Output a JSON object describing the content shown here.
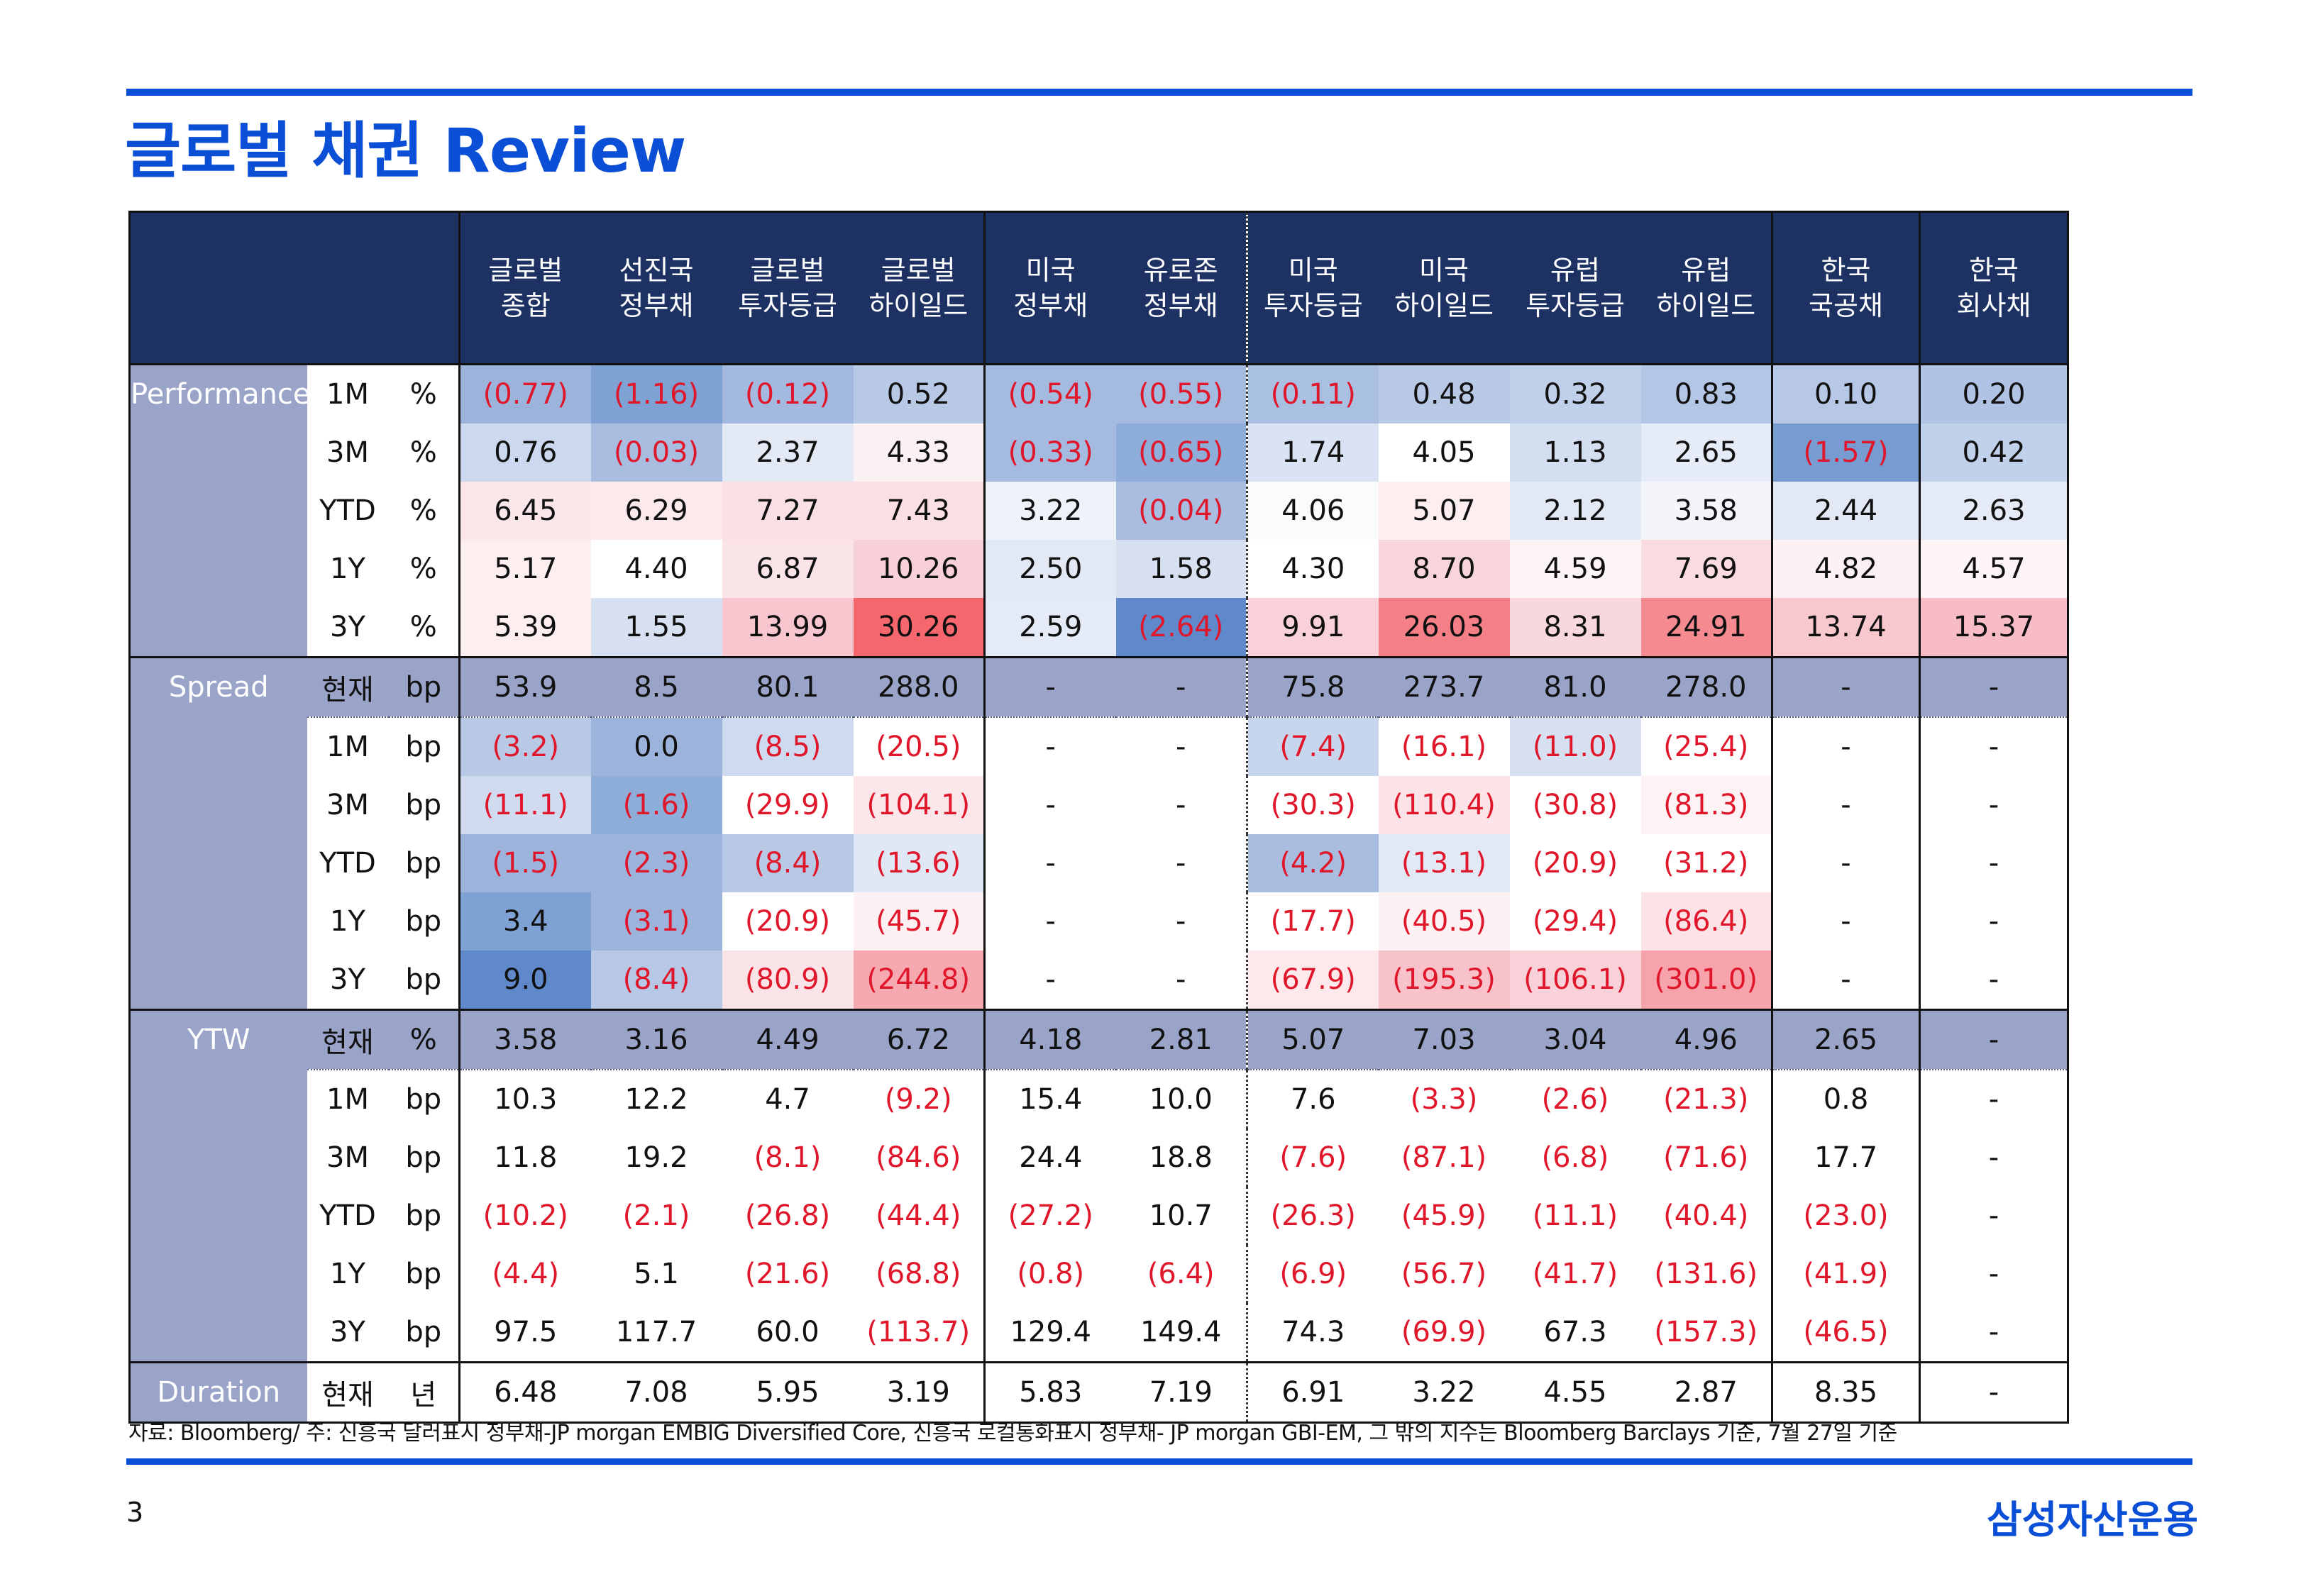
{
  "title": "글로벌 채권 Review",
  "columns": [
    [
      "글로벌",
      "종합"
    ],
    [
      "선진국",
      "정부채"
    ],
    [
      "글로벌",
      "투자등급"
    ],
    [
      "글로벌",
      "하이일드"
    ],
    [
      "미국",
      "정부채"
    ],
    [
      "유로존",
      "정부채"
    ],
    [
      "미국",
      "투자등급"
    ],
    [
      "미국",
      "하이일드"
    ],
    [
      "유럽",
      "투자등급"
    ],
    [
      "유럽",
      "하이일드"
    ],
    [
      "한국",
      "국공채"
    ],
    [
      "한국",
      "회사채"
    ]
  ],
  "colors": {
    "accent": "#0b4fd6",
    "header_bg": "#1d3263",
    "section_bg": "#9aa3c8",
    "negative": "#e0162b"
  },
  "sections": [
    {
      "name": "Performance",
      "rows": [
        {
          "period": "1M",
          "unit": "%",
          "values": [
            "(0.77)",
            "(1.16)",
            "(0.12)",
            "0.52",
            "(0.54)",
            "(0.55)",
            "(0.11)",
            "0.48",
            "0.32",
            "0.83",
            "0.10",
            "0.20"
          ],
          "shades": [
            "#9cb4dc",
            "#7fa2d4",
            "#a3b9df",
            "#b8c9e6",
            "#a5badf",
            "#a5badf",
            "#aac0e2",
            "#b8c9e6",
            "#c0d0ea",
            "#b4c6e5",
            "#b6c8e6",
            "#b0c3e4"
          ]
        },
        {
          "period": "3M",
          "unit": "%",
          "values": [
            "0.76",
            "(0.03)",
            "2.37",
            "4.33",
            "(0.33)",
            "(0.65)",
            "1.74",
            "4.05",
            "1.13",
            "2.65",
            "(1.57)",
            "0.42"
          ],
          "shades": [
            "#ccd8ee",
            "#a8bde0",
            "#e2e9f5",
            "#fbf1f3",
            "#a5badf",
            "#8fadd9",
            "#dae3f3",
            "#ffffff",
            "#d3def0",
            "#e6ecf7",
            "#779cd2",
            "#c2d1eb"
          ]
        },
        {
          "period": "YTD",
          "unit": "%",
          "values": [
            "6.45",
            "6.29",
            "7.27",
            "7.43",
            "3.22",
            "(0.04)",
            "4.06",
            "5.07",
            "2.12",
            "3.58",
            "2.44",
            "2.63"
          ],
          "shades": [
            "#fbe6ea",
            "#fce9ec",
            "#fae0e4",
            "#fadfe3",
            "#eef2f9",
            "#a8bde0",
            "#f9fbfd",
            "#fdeef0",
            "#e2e9f5",
            "#f3f5fb",
            "#e2e9f5",
            "#e5ebf6"
          ]
        },
        {
          "period": "1Y",
          "unit": "%",
          "values": [
            "5.17",
            "4.40",
            "6.87",
            "10.26",
            "2.50",
            "1.58",
            "4.30",
            "8.70",
            "4.59",
            "7.69",
            "4.82",
            "4.57"
          ],
          "shades": [
            "#fdeef0",
            "#ffffff",
            "#fbe4e8",
            "#f8d0d7",
            "#e2e9f5",
            "#d6e0f1",
            "#ffffff",
            "#f7d5db",
            "#fdf4f5",
            "#f9dbe0",
            "#fdf1f3",
            "#fdf4f5"
          ]
        },
        {
          "period": "3Y",
          "unit": "%",
          "values": [
            "5.39",
            "1.55",
            "13.99",
            "30.26",
            "2.59",
            "(2.64)",
            "9.91",
            "26.03",
            "8.31",
            "24.91",
            "13.74",
            "15.37"
          ],
          "shades": [
            "#fdeef0",
            "#d6e0f1",
            "#f8c6ce",
            "#f6676d",
            "#e4eaf6",
            "#5f89cb",
            "#f8d2d8",
            "#f47f86",
            "#f9d8dd",
            "#f58a91",
            "#f8c8cf",
            "#f7bcc5"
          ]
        }
      ]
    },
    {
      "name": "Spread",
      "rows": [
        {
          "period": "현재",
          "unit": "bp",
          "values": [
            "53.9",
            "8.5",
            "80.1",
            "288.0",
            "-",
            "-",
            "75.8",
            "273.7",
            "81.0",
            "278.0",
            "-",
            "-"
          ]
        },
        {
          "period": "1M",
          "unit": "bp",
          "values": [
            "(3.2)",
            "0.0",
            "(8.5)",
            "(20.5)",
            "-",
            "-",
            "(7.4)",
            "(16.1)",
            "(11.0)",
            "(25.4)",
            "-",
            "-"
          ],
          "shades": [
            "#b8c9e6",
            "#9cb4dc",
            "#cedaef",
            "#ffffff",
            "#ffffff",
            "#ffffff",
            "#c8d6ed",
            "#ffffff",
            "#d6e0f1",
            "#ffffff",
            "#ffffff",
            "#ffffff"
          ]
        },
        {
          "period": "3M",
          "unit": "bp",
          "values": [
            "(11.1)",
            "(1.6)",
            "(29.9)",
            "(104.1)",
            "-",
            "-",
            "(30.3)",
            "(110.4)",
            "(30.8)",
            "(81.3)",
            "-",
            "-"
          ],
          "shades": [
            "#d0dbef",
            "#8eaed9",
            "#ffffff",
            "#fbe7ea",
            "#ffffff",
            "#ffffff",
            "#ffffff",
            "#fbe3e7",
            "#ffffff",
            "#fdf2f4",
            "#ffffff",
            "#ffffff"
          ]
        },
        {
          "period": "YTD",
          "unit": "bp",
          "values": [
            "(1.5)",
            "(2.3)",
            "(8.4)",
            "(13.6)",
            "-",
            "-",
            "(4.2)",
            "(13.1)",
            "(20.9)",
            "(31.2)",
            "-",
            "-"
          ],
          "shades": [
            "#9cb4dc",
            "#9cb4dc",
            "#b8c9e6",
            "#e0e8f5",
            "#ffffff",
            "#ffffff",
            "#a8bde0",
            "#e2e9f5",
            "#ffffff",
            "#ffffff",
            "#ffffff",
            "#ffffff"
          ]
        },
        {
          "period": "1Y",
          "unit": "bp",
          "values": [
            "3.4",
            "(3.1)",
            "(20.9)",
            "(45.7)",
            "-",
            "-",
            "(17.7)",
            "(40.5)",
            "(29.4)",
            "(86.4)",
            "-",
            "-"
          ],
          "shades": [
            "#7fa2d4",
            "#9cb4dc",
            "#ffffff",
            "#fdf0f2",
            "#ffffff",
            "#ffffff",
            "#ffffff",
            "#fdf1f3",
            "#ffffff",
            "#fbe3e7",
            "#ffffff",
            "#ffffff"
          ]
        },
        {
          "period": "3Y",
          "unit": "bp",
          "values": [
            "9.0",
            "(8.4)",
            "(80.9)",
            "(244.8)",
            "-",
            "-",
            "(67.9)",
            "(195.3)",
            "(106.1)",
            "(301.0)",
            "-",
            "-"
          ],
          "shades": [
            "#5f89cb",
            "#b6c8e6",
            "#fbe4e8",
            "#f6a9b1",
            "#ffffff",
            "#ffffff",
            "#fde9ec",
            "#f8c2ca",
            "#f8d2d8",
            "#f6a3ac",
            "#ffffff",
            "#ffffff"
          ]
        }
      ]
    },
    {
      "name": "YTW",
      "rows": [
        {
          "period": "현재",
          "unit": "%",
          "values": [
            "3.58",
            "3.16",
            "4.49",
            "6.72",
            "4.18",
            "2.81",
            "5.07",
            "7.03",
            "3.04",
            "4.96",
            "2.65",
            "-"
          ]
        },
        {
          "period": "1M",
          "unit": "bp",
          "values": [
            "10.3",
            "12.2",
            "4.7",
            "(9.2)",
            "15.4",
            "10.0",
            "7.6",
            "(3.3)",
            "(2.6)",
            "(21.3)",
            "0.8",
            "-"
          ]
        },
        {
          "period": "3M",
          "unit": "bp",
          "values": [
            "11.8",
            "19.2",
            "(8.1)",
            "(84.6)",
            "24.4",
            "18.8",
            "(7.6)",
            "(87.1)",
            "(6.8)",
            "(71.6)",
            "17.7",
            "-"
          ]
        },
        {
          "period": "YTD",
          "unit": "bp",
          "values": [
            "(10.2)",
            "(2.1)",
            "(26.8)",
            "(44.4)",
            "(27.2)",
            "10.7",
            "(26.3)",
            "(45.9)",
            "(11.1)",
            "(40.4)",
            "(23.0)",
            "-"
          ]
        },
        {
          "period": "1Y",
          "unit": "bp",
          "values": [
            "(4.4)",
            "5.1",
            "(21.6)",
            "(68.8)",
            "(0.8)",
            "(6.4)",
            "(6.9)",
            "(56.7)",
            "(41.7)",
            "(131.6)",
            "(41.9)",
            "-"
          ]
        },
        {
          "period": "3Y",
          "unit": "bp",
          "values": [
            "97.5",
            "117.7",
            "60.0",
            "(113.7)",
            "129.4",
            "149.4",
            "74.3",
            "(69.9)",
            "67.3",
            "(157.3)",
            "(46.5)",
            "-"
          ]
        }
      ]
    },
    {
      "name": "Duration",
      "rows": [
        {
          "period": "현재",
          "unit": "년",
          "values": [
            "6.48",
            "7.08",
            "5.95",
            "3.19",
            "5.83",
            "7.19",
            "6.91",
            "3.22",
            "4.55",
            "2.87",
            "8.35",
            "-"
          ]
        }
      ]
    }
  ],
  "source": "자료: Bloomberg/ 주: 신흥국 달러표시 정부채-JP morgan EMBIG Diversified Core, 신흥국 로컬통화표시 정부채- JP morgan GBI-EM, 그 밖의 지수는 Bloomberg Barclays 기준, 7월 27일 기준",
  "page_number": "3",
  "logo": "삼성자산운용"
}
